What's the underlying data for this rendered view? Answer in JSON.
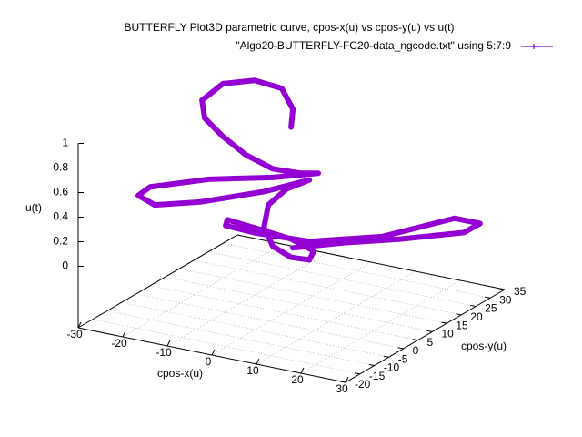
{
  "chart_data": {
    "type": "line3d",
    "title": "BUTTERFLY Plot3D parametric curve, cpos-x(u) vs cpos-y(u) vs u(t)",
    "xlabel": "cpos-x(u)",
    "ylabel": "cpos-y(u)",
    "zlabel": "u(t)",
    "xlim": [
      -30,
      30
    ],
    "ylim": [
      -20,
      35
    ],
    "zlim": [
      0,
      1
    ],
    "xticks": [
      -30,
      -20,
      -10,
      0,
      10,
      20,
      30
    ],
    "yticks": [
      -20,
      -15,
      -10,
      -5,
      0,
      5,
      10,
      15,
      20,
      25,
      30,
      35
    ],
    "zticks": [
      0,
      0.2,
      0.4,
      0.6,
      0.8,
      1
    ],
    "grid": true,
    "legend": "top-right",
    "series": [
      {
        "name": "\"Algo20-BUTTERFLY-FC20-data_ngcode.txt\" using 5:7:9",
        "color": "#9400d3",
        "x": [
          -1.7,
          -1.3,
          -3.8,
          -9.9,
          -17.0,
          -21.7,
          -21.1,
          -17.0,
          -11.9,
          -5.8,
          0.3,
          4.4,
          -5.8,
          -20.1,
          -33.3,
          -36.0,
          -32.3,
          -22.1,
          -7.8,
          2.4,
          -2.7,
          -6.8,
          -7.8,
          -5.8,
          -1.7,
          2.4,
          3.4,
          -1.7,
          -9.9,
          -16.0,
          -16.4,
          -9.9,
          2.4,
          18.7,
          35.0,
          40.7,
          37.1,
          22.8,
          10.5,
          -1.3
        ],
        "y": [
          10,
          10,
          10,
          10,
          10,
          10,
          10,
          10,
          10,
          10,
          10,
          10,
          10,
          10,
          10,
          10,
          10,
          10,
          10,
          10,
          10,
          10,
          10,
          10,
          10,
          10,
          10,
          10,
          10,
          10,
          10,
          10,
          10,
          10,
          10,
          10,
          10,
          10,
          10,
          10
        ],
        "z": [
          0.93,
          1.08,
          1.23,
          1.25,
          1.17,
          1.0,
          0.86,
          0.74,
          0.63,
          0.56,
          0.57,
          0.6,
          0.49,
          0.37,
          0.21,
          0.12,
          0.07,
          0.17,
          0.36,
          0.53,
          0.42,
          0.26,
          0.07,
          -0.07,
          -0.13,
          -0.12,
          -0.04,
          0.02,
          0.05,
          0.07,
          0.02,
          0.01,
          0.03,
          0.19,
          0.46,
          0.46,
          0.36,
          0.2,
          0.08,
          -0.05
        ]
      }
    ]
  }
}
